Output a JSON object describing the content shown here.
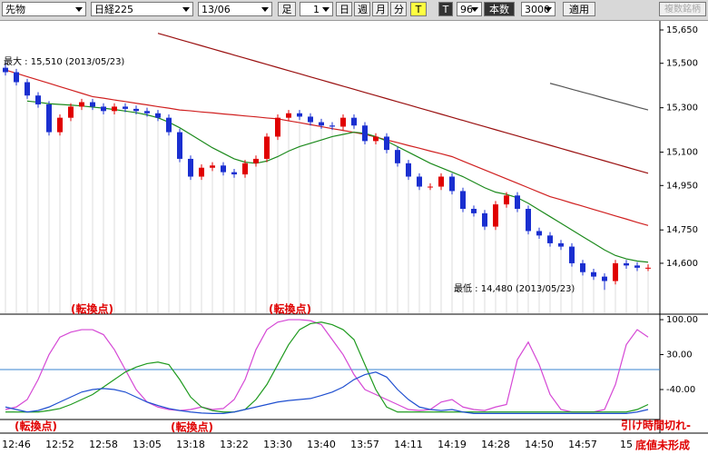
{
  "toolbar": {
    "market": "先物",
    "symbol": "日経225",
    "contract": "13/06",
    "bar_label": "足",
    "bar_size": 1,
    "period_buttons": [
      "日",
      "週",
      "月",
      "分",
      "T"
    ],
    "tick_label": "T",
    "bars": 96,
    "bars_label": "本数",
    "max_bars": 3000,
    "apply": "適用",
    "multi": "複数銘柄"
  },
  "chart_data": [
    {
      "type": "candlestick",
      "categories": [
        null,
        "12:46",
        null,
        null,
        null,
        "12:52",
        null,
        null,
        null,
        "12:58",
        null,
        null,
        null,
        "13:05",
        null,
        null,
        null,
        "13:18",
        null,
        null,
        null,
        "13:22",
        null,
        null,
        null,
        "13:30",
        null,
        null,
        null,
        "13:40",
        null,
        null,
        null,
        "13:57",
        null,
        null,
        null,
        "14:11",
        null,
        null,
        null,
        "14:19",
        null,
        null,
        null,
        "14:28",
        null,
        null,
        null,
        "14:50",
        null,
        null,
        null,
        "14:57",
        null,
        null,
        null,
        "15",
        null,
        null
      ],
      "open": [
        15480,
        15460,
        15415,
        15355,
        15315,
        15190,
        15255,
        15305,
        15325,
        15305,
        15285,
        15305,
        15295,
        15285,
        15275,
        15255,
        15190,
        15070,
        14990,
        15030,
        15040,
        15010,
        15000,
        15050,
        15070,
        15170,
        15255,
        15275,
        15260,
        15235,
        15220,
        15215,
        15255,
        15220,
        15150,
        15170,
        15110,
        15050,
        14990,
        14945,
        14945,
        14990,
        14925,
        14845,
        14825,
        14765,
        14865,
        14905,
        14845,
        14745,
        14725,
        14690,
        14675,
        14600,
        14560,
        14540,
        14520,
        14600,
        14590,
        14580
      ],
      "high": [
        15510,
        15475,
        15430,
        15370,
        15330,
        15270,
        15320,
        15340,
        15340,
        15320,
        15320,
        15320,
        15310,
        15300,
        15290,
        15270,
        15205,
        15085,
        15045,
        15055,
        15055,
        15025,
        15065,
        15085,
        15185,
        15270,
        15290,
        15290,
        15275,
        15250,
        15235,
        15270,
        15270,
        15235,
        15185,
        15185,
        15125,
        15065,
        15005,
        14960,
        15005,
        15005,
        14940,
        14860,
        14840,
        14880,
        14920,
        14920,
        14860,
        14760,
        14740,
        14705,
        14690,
        14615,
        14575,
        14555,
        14615,
        14615,
        14605,
        14595
      ],
      "low": [
        15445,
        15400,
        15340,
        15300,
        15175,
        15175,
        15240,
        15290,
        15290,
        15270,
        15270,
        15280,
        15270,
        15260,
        15240,
        15175,
        15055,
        14975,
        14975,
        15015,
        14995,
        14985,
        14985,
        15035,
        15055,
        15155,
        15240,
        15245,
        15220,
        15205,
        15200,
        15200,
        15205,
        15135,
        15135,
        15095,
        15035,
        14975,
        14930,
        14930,
        14930,
        14910,
        14830,
        14810,
        14750,
        14750,
        14850,
        14830,
        14730,
        14710,
        14675,
        14660,
        14585,
        14545,
        14525,
        14480,
        14505,
        14575,
        14565,
        14565
      ],
      "close": [
        15460,
        15415,
        15355,
        15315,
        15190,
        15255,
        15305,
        15325,
        15305,
        15285,
        15305,
        15295,
        15285,
        15275,
        15255,
        15190,
        15070,
        14990,
        15030,
        15040,
        15010,
        15000,
        15050,
        15070,
        15170,
        15255,
        15275,
        15260,
        15235,
        15220,
        15215,
        15255,
        15220,
        15150,
        15170,
        15110,
        15050,
        14990,
        14945,
        14945,
        14990,
        14925,
        14845,
        14825,
        14765,
        14865,
        14905,
        14845,
        14745,
        14725,
        14690,
        14675,
        14600,
        14560,
        14540,
        14520,
        14600,
        14590,
        14580,
        14580
      ],
      "up_color": "#e00000",
      "down_color": "#1a2fd0",
      "series": [
        {
          "color": "#9a1010",
          "values": [
            null,
            null,
            null,
            null,
            null,
            null,
            null,
            null,
            null,
            null,
            null,
            null,
            null,
            null,
            15635,
            15621,
            15607,
            15593,
            15579,
            15565,
            15551,
            15537,
            15523,
            15509,
            15495,
            15481,
            15467,
            15453,
            15439,
            15425,
            15411,
            15397,
            15383,
            15369,
            15355,
            15341,
            15327,
            15313,
            15299,
            15285,
            15271,
            15257,
            15243,
            15229,
            15215,
            15201,
            15187,
            15173,
            15159,
            15145,
            15131,
            15117,
            15103,
            15089,
            15075,
            15061,
            15047,
            15033,
            15019,
            15005
          ]
        },
        {
          "color": "#d02020",
          "values": [
            15470,
            15455,
            15440,
            15425,
            15410,
            15395,
            15380,
            15365,
            15350,
            15343,
            15335,
            15328,
            15320,
            15313,
            15305,
            15298,
            15290,
            15286,
            15281,
            15277,
            15272,
            15268,
            15263,
            15259,
            15254,
            15250,
            15241,
            15233,
            15224,
            15215,
            15206,
            15198,
            15189,
            15180,
            15168,
            15155,
            15143,
            15130,
            15118,
            15105,
            15093,
            15080,
            15060,
            15040,
            15020,
            15000,
            14980,
            14960,
            14940,
            14920,
            14900,
            14886,
            14871,
            14857,
            14842,
            14828,
            14813,
            14799,
            14784,
            14770
          ]
        },
        {
          "color": "#1c8a1c",
          "values": [
            null,
            null,
            15330,
            15325,
            15318,
            15315,
            15312,
            15308,
            15303,
            15298,
            15292,
            15285,
            15278,
            15268,
            15255,
            15235,
            15210,
            15180,
            15150,
            15120,
            15095,
            15070,
            15055,
            15050,
            15060,
            15080,
            15105,
            15125,
            15140,
            15155,
            15170,
            15180,
            15190,
            15185,
            15170,
            15150,
            15125,
            15100,
            15075,
            15050,
            15030,
            15010,
            14990,
            14965,
            14940,
            14920,
            14910,
            14895,
            14870,
            14840,
            14810,
            14780,
            14750,
            14720,
            14690,
            14660,
            14635,
            14620,
            14610,
            14605
          ]
        },
        {
          "color": "#555555",
          "values": [
            null,
            null,
            null,
            null,
            null,
            null,
            null,
            null,
            null,
            null,
            null,
            null,
            null,
            null,
            null,
            null,
            null,
            null,
            null,
            null,
            null,
            null,
            null,
            null,
            null,
            null,
            null,
            null,
            null,
            null,
            null,
            null,
            null,
            null,
            null,
            null,
            null,
            null,
            null,
            null,
            null,
            null,
            null,
            null,
            null,
            null,
            null,
            null,
            null,
            null,
            15410,
            15397,
            15383,
            15370,
            15357,
            15343,
            15330,
            15317,
            15303,
            15290
          ]
        }
      ],
      "ylim": [
        14375,
        15695
      ],
      "yticks": [
        {
          "value": 15650,
          "label": "15,650"
        },
        {
          "value": 15500,
          "label": "15,500"
        },
        {
          "value": 15300,
          "label": "15,300"
        },
        {
          "value": 15100,
          "label": "15,100"
        },
        {
          "value": 14950,
          "label": "14,950"
        },
        {
          "value": 14750,
          "label": "14,750"
        },
        {
          "value": 14600,
          "label": "14,600"
        }
      ],
      "annotations": [
        "最大 : 15,510 (2013/05/23)",
        "最低 : 14,480 (2013/05/23)"
      ]
    },
    {
      "type": "line",
      "series": [
        {
          "color": "#d548d5",
          "values": [
            -80,
            -75,
            -60,
            -20,
            30,
            65,
            75,
            80,
            80,
            70,
            40,
            0,
            -40,
            -65,
            -75,
            -80,
            -82,
            -80,
            -75,
            -80,
            -78,
            -60,
            -20,
            40,
            80,
            95,
            100,
            100,
            98,
            90,
            60,
            30,
            -10,
            -40,
            -50,
            -60,
            -70,
            -80,
            -82,
            -80,
            -65,
            -60,
            -75,
            -80,
            -82,
            -75,
            -70,
            20,
            55,
            10,
            -50,
            -80,
            -85,
            -85,
            -85,
            -80,
            -30,
            50,
            80,
            65
          ]
        },
        {
          "color": "#1e9a1e",
          "values": [
            -85,
            -85,
            -85,
            -85,
            -82,
            -78,
            -70,
            -60,
            -50,
            -35,
            -20,
            -5,
            5,
            12,
            15,
            10,
            -20,
            -55,
            -75,
            -82,
            -85,
            -85,
            -80,
            -60,
            -30,
            10,
            50,
            80,
            92,
            95,
            90,
            80,
            60,
            10,
            -40,
            -75,
            -85,
            -85,
            -85,
            -85,
            -85,
            -85,
            -85,
            -85,
            -85,
            -85,
            -85,
            -85,
            -85,
            -85,
            -85,
            -85,
            -85,
            -85,
            -85,
            -85,
            -85,
            -85,
            -80,
            -70
          ]
        },
        {
          "color": "#1f4fd0",
          "values": [
            -75,
            -80,
            -85,
            -82,
            -75,
            -65,
            -55,
            -45,
            -40,
            -38,
            -40,
            -45,
            -55,
            -65,
            -72,
            -78,
            -82,
            -85,
            -87,
            -88,
            -88,
            -85,
            -80,
            -75,
            -70,
            -65,
            -62,
            -60,
            -58,
            -52,
            -45,
            -35,
            -20,
            -10,
            -5,
            -15,
            -40,
            -60,
            -75,
            -80,
            -82,
            -80,
            -85,
            -88,
            -88,
            -88,
            -88,
            -88,
            -88,
            -88,
            -88,
            -88,
            -88,
            -88,
            -88,
            -88,
            -88,
            -88,
            -85,
            -80
          ]
        }
      ],
      "hline": 0,
      "hline_color": "#3a86d0",
      "ylim": [
        -100,
        111
      ],
      "yticks": [
        {
          "value": 100,
          "label": "100.00"
        },
        {
          "value": 30,
          "label": "30.00"
        },
        {
          "value": -40,
          "label": "-40.00"
        }
      ],
      "annotations": [
        "(転換点)",
        "(転換点)",
        "(転換点)",
        "(転換点)",
        "引け時間切れ-",
        "底値未形成"
      ]
    }
  ]
}
